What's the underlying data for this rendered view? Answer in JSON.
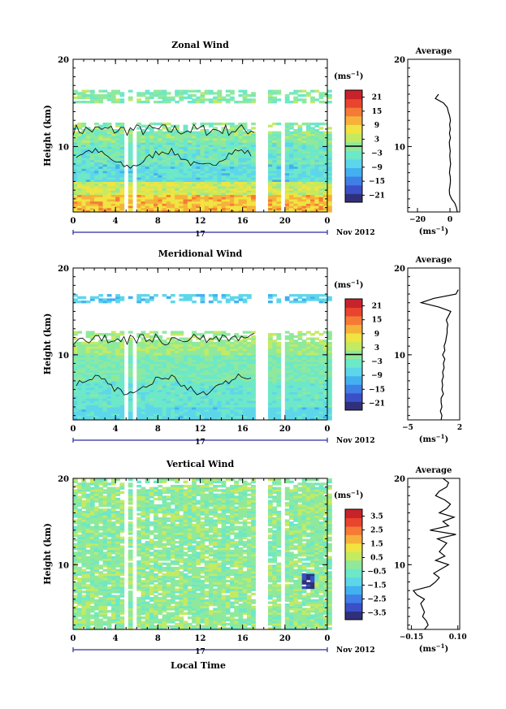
{
  "figure": {
    "local_time_label": "Local Time"
  },
  "colormap": [
    "#30307a",
    "#3a4fc8",
    "#3f7fe6",
    "#43b0ef",
    "#5ed6ea",
    "#6de8c8",
    "#8fe99c",
    "#c4ea62",
    "#f0e442",
    "#f6b13b",
    "#f57a36",
    "#e8442e",
    "#c8232a"
  ],
  "chart_data": [
    {
      "type": "heatmap",
      "title": "Zonal Wind",
      "ylabel": "Height (km)",
      "xlabel": "",
      "x_ticks": [
        "0",
        "4",
        "8",
        "12",
        "16",
        "20",
        "0"
      ],
      "x_range": [
        0,
        24
      ],
      "day_label": "17",
      "month_label": "Nov 2012",
      "y_ticks": [
        "20",
        "10"
      ],
      "y_range": [
        2.5,
        20
      ],
      "unit_label": "(ms",
      "unit_exp": "−1",
      "colorbar_ticks": [
        "21",
        "15",
        "9",
        "3",
        "−3",
        "−9",
        "−15",
        "−21"
      ],
      "colorbar_range": [
        -24,
        24
      ],
      "data_gaps_hours": [
        [
          4.9,
          5.2
        ],
        [
          5.4,
          5.9
        ],
        [
          17.3,
          18.5
        ],
        [
          19.4,
          19.8
        ]
      ],
      "upper_data_top_km": 12.7,
      "sparse_layer_km": [
        15.0,
        16.4
      ],
      "contour_level": 0,
      "average_profile": {
        "title": "Average",
        "x_ticks": [
          "−20",
          "0"
        ],
        "x_range": [
          -26,
          6
        ],
        "xlabel": "(ms",
        "x_exp": "−1",
        "height_km": [
          2.5,
          3,
          3.5,
          4,
          4.5,
          5,
          5.5,
          6,
          6.5,
          7,
          7.5,
          8,
          8.5,
          9,
          9.5,
          10,
          10.5,
          11,
          11.5,
          12,
          12.5,
          13,
          13.5,
          14,
          14.5,
          15,
          15.5,
          16
        ],
        "values": [
          4.5,
          4,
          3,
          1,
          -0.2,
          -0.4,
          0,
          0.3,
          0.2,
          -0.3,
          0,
          0.4,
          0.1,
          -0.1,
          0.2,
          -0.2,
          -0.4,
          0.3,
          -0.3,
          0.2,
          -0.2,
          0.3,
          -0.2,
          -1,
          -1.7,
          -4,
          -9,
          -7
        ]
      }
    },
    {
      "type": "heatmap",
      "title": "Meridional Wind",
      "ylabel": "Height (km)",
      "xlabel": "",
      "x_ticks": [
        "0",
        "4",
        "8",
        "12",
        "16",
        "20",
        "0"
      ],
      "x_range": [
        0,
        24
      ],
      "day_label": "17",
      "month_label": "Nov 2012",
      "y_ticks": [
        "20",
        "10"
      ],
      "y_range": [
        2.5,
        20
      ],
      "unit_label": "(ms",
      "unit_exp": "−1",
      "colorbar_ticks": [
        "21",
        "15",
        "9",
        "3",
        "−3",
        "−9",
        "−15",
        "−21"
      ],
      "colorbar_range": [
        -24,
        24
      ],
      "data_gaps_hours": [
        [
          4.9,
          5.2
        ],
        [
          5.4,
          5.9
        ],
        [
          17.3,
          18.5
        ],
        [
          19.4,
          19.8
        ]
      ],
      "upper_data_top_km": 12.6,
      "sparse_layer_km": [
        15.8,
        16.8
      ],
      "contour_level": 0,
      "average_profile": {
        "title": "Average",
        "x_ticks": [
          "−5",
          "2"
        ],
        "x_range": [
          -5,
          2
        ],
        "xlabel": "(ms",
        "x_exp": "−1",
        "height_km": [
          2.5,
          3,
          3.5,
          4,
          4.5,
          5,
          5.5,
          6,
          6.5,
          7,
          7.5,
          8,
          8.5,
          9,
          9.5,
          10,
          10.5,
          11,
          11.5,
          12,
          12.5,
          13,
          13.5,
          14,
          14.5,
          15,
          15.5,
          16,
          16.5,
          17,
          17.5
        ],
        "values": [
          -0.5,
          -0.4,
          -0.6,
          -0.4,
          -0.5,
          -0.5,
          -0.2,
          -0.4,
          -0.3,
          -0.4,
          -0.2,
          -0.3,
          -0.1,
          -0.2,
          0,
          -0.3,
          0,
          -0.1,
          0.1,
          0.2,
          0.3,
          0.3,
          0.4,
          0.2,
          0.5,
          0.8,
          -0.8,
          -3.2,
          -1.5,
          1.5,
          1.8
        ]
      }
    },
    {
      "type": "heatmap",
      "title": "Vertical Wind",
      "ylabel": "Height (km)",
      "xlabel": "Local Time",
      "x_ticks": [
        "0",
        "4",
        "8",
        "12",
        "16",
        "20",
        "0"
      ],
      "x_range": [
        0,
        24
      ],
      "day_label": "17",
      "month_label": "Nov 2012",
      "y_ticks": [
        "20",
        "10"
      ],
      "y_range": [
        2.5,
        20
      ],
      "unit_label": "(ms",
      "unit_exp": "−1",
      "colorbar_ticks": [
        "3.5",
        "2.5",
        "1.5",
        "0.5",
        "−0.5",
        "−1.5",
        "−2.5",
        "−3.5"
      ],
      "colorbar_range": [
        -4,
        4
      ],
      "data_gaps_hours": [
        [
          4.9,
          5.2
        ],
        [
          5.4,
          5.9
        ],
        [
          17.3,
          18.5
        ],
        [
          19.4,
          19.8
        ]
      ],
      "upper_data_top_km": 20,
      "sparse_layer_km": [
        0,
        0
      ],
      "contour_level": null,
      "average_profile": {
        "title": "Average",
        "x_ticks": [
          "−0.15",
          "0.10"
        ],
        "x_range": [
          -0.17,
          0.11
        ],
        "xlabel": "(ms",
        "x_exp": "−1",
        "height_km": [
          2.5,
          3,
          3.5,
          4,
          4.5,
          5,
          5.5,
          6,
          6.5,
          7,
          7.5,
          8,
          8.5,
          9,
          9.5,
          10,
          10.5,
          11,
          11.5,
          12,
          12.5,
          13,
          13.5,
          14,
          14.5,
          15,
          15.5,
          16,
          16.5,
          17,
          17.5,
          18,
          18.5,
          19,
          19.5,
          20
        ],
        "values": [
          -0.08,
          -0.06,
          -0.07,
          -0.09,
          -0.08,
          -0.09,
          -0.1,
          -0.08,
          -0.12,
          -0.14,
          -0.05,
          -0.02,
          0.0,
          -0.03,
          0.01,
          0.05,
          -0.02,
          0.03,
          0.0,
          0.02,
          0.04,
          -0.01,
          0.09,
          -0.05,
          0.05,
          0.02,
          0.08,
          0.0,
          0.04,
          0.06,
          0.03,
          -0.02,
          0.0,
          0.04,
          0.05,
          0.02
        ]
      }
    }
  ]
}
